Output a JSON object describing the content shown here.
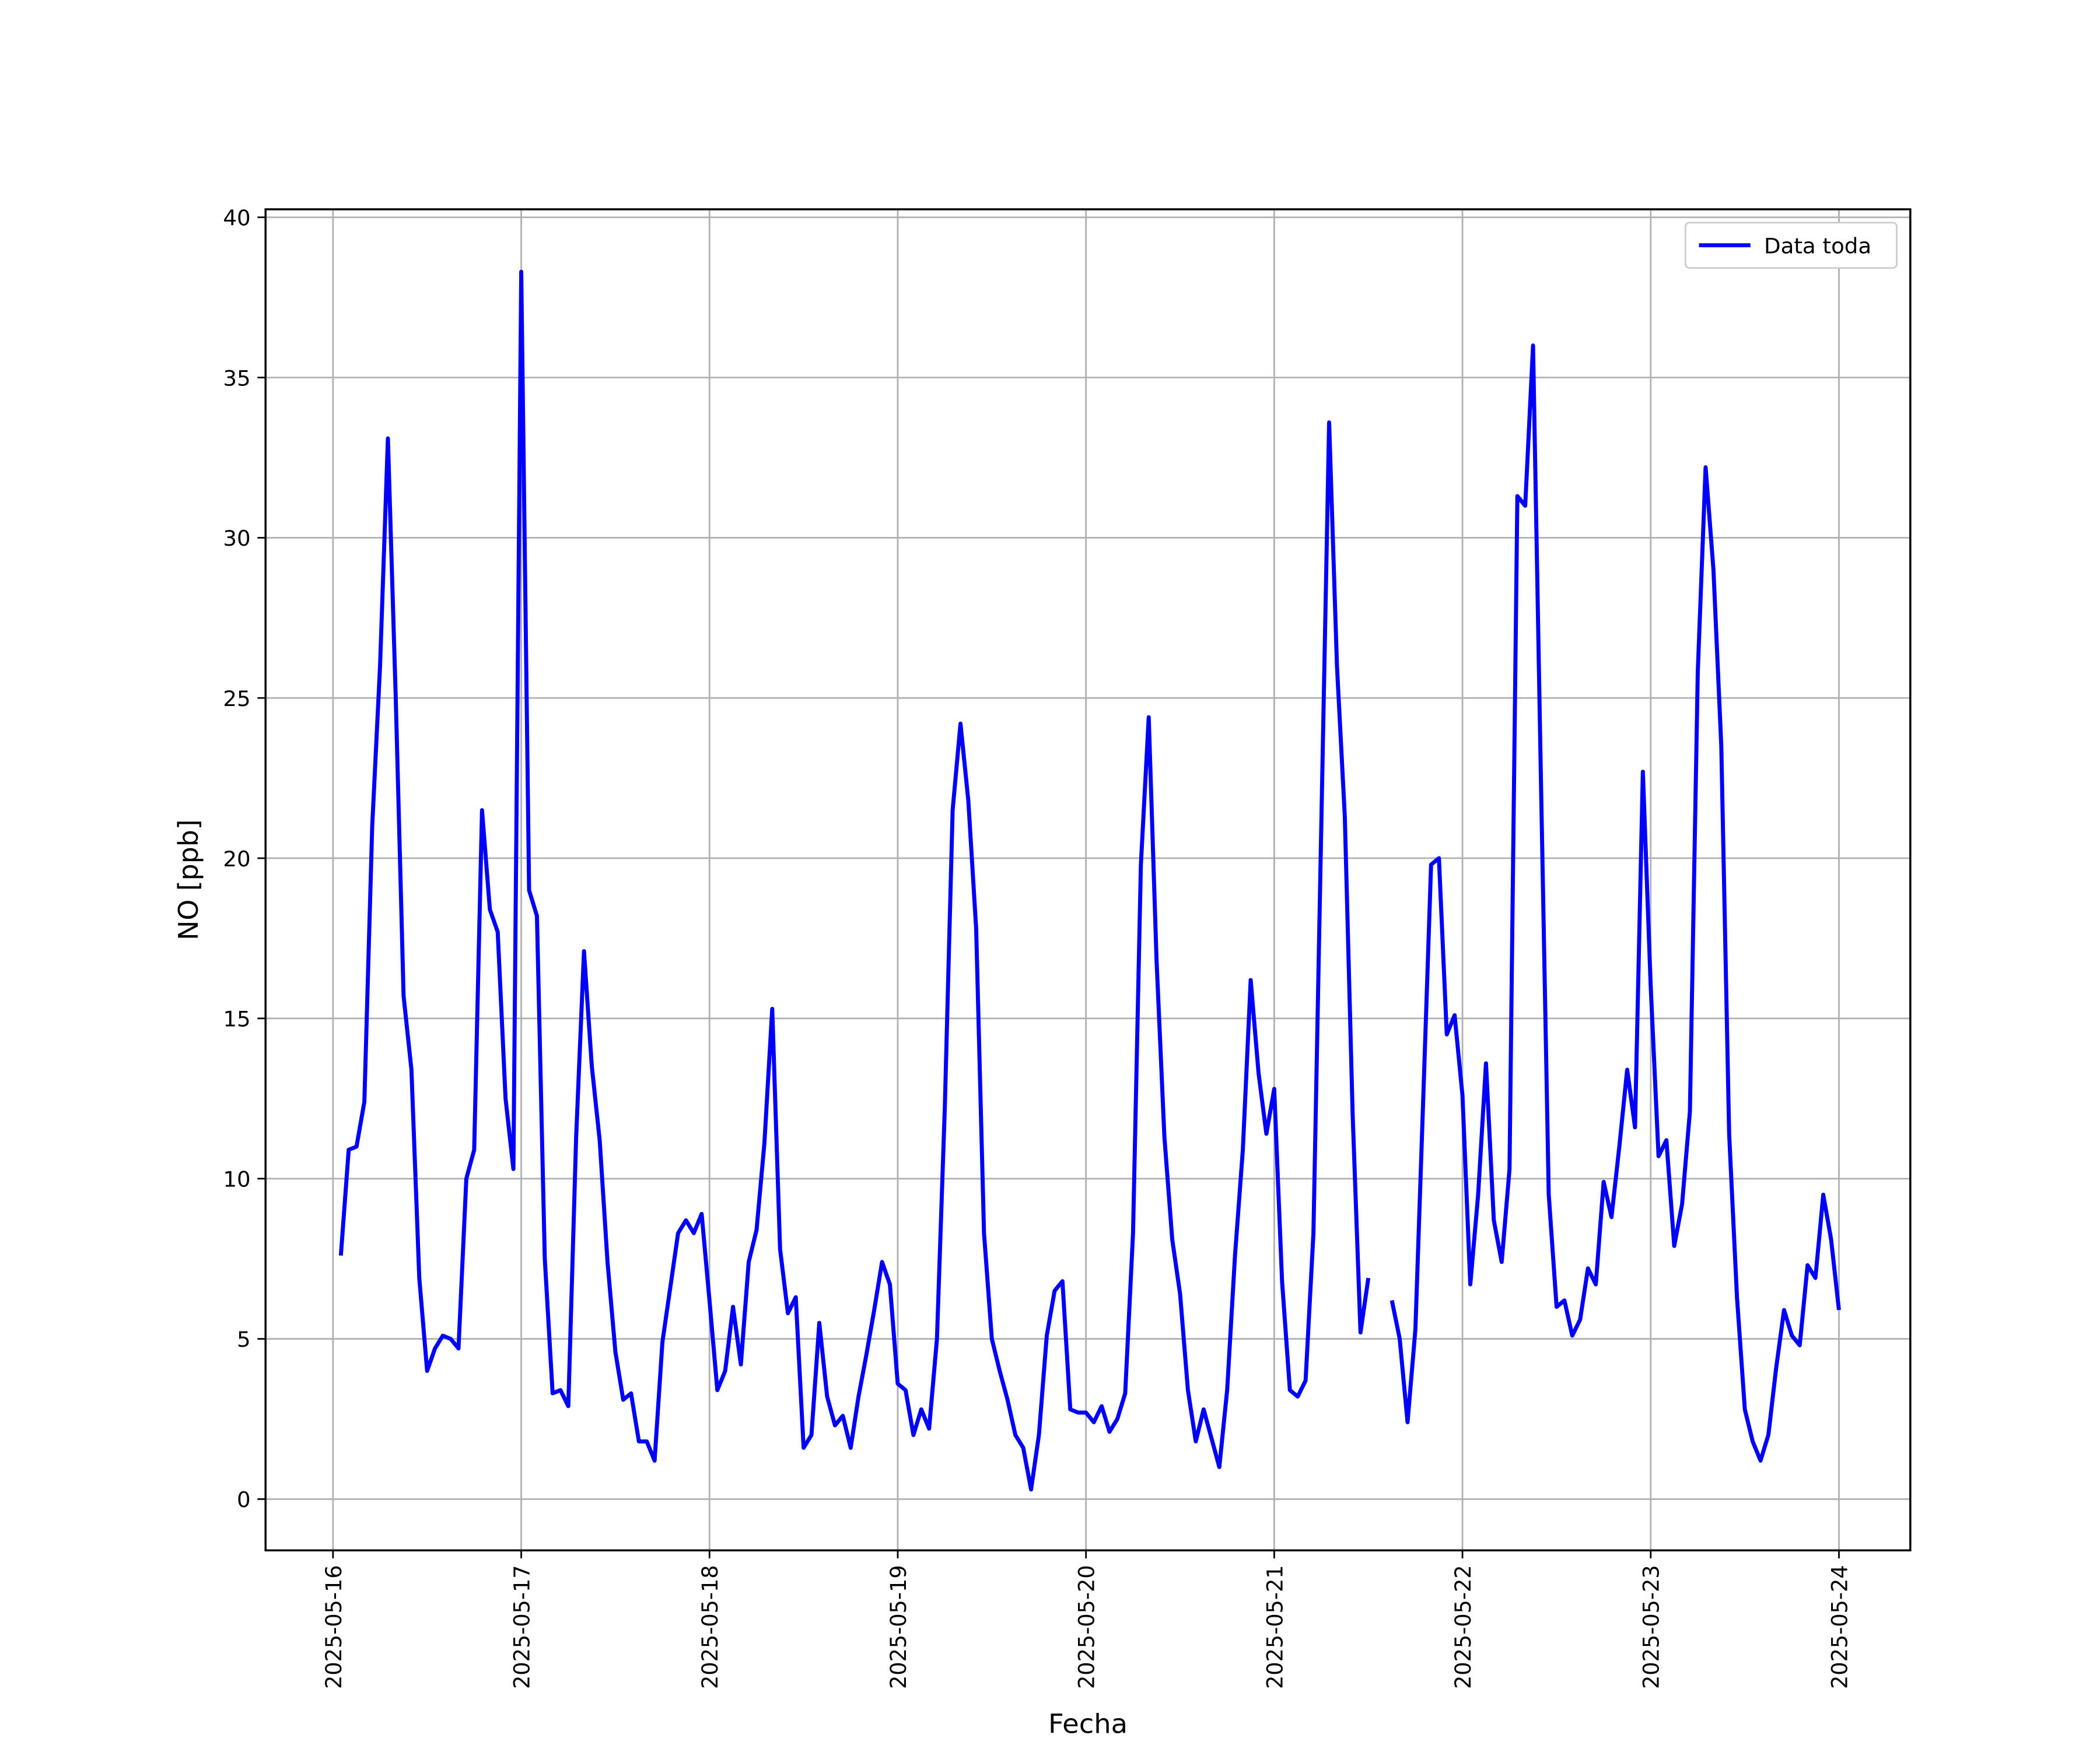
{
  "chart_data": {
    "type": "line",
    "xlabel": "Fecha",
    "ylabel": "NO [ppb]",
    "x": [
      1,
      2,
      3,
      4,
      5,
      6,
      7,
      8,
      9,
      10,
      11,
      12,
      13,
      14,
      15,
      16,
      17,
      18,
      19,
      20,
      21,
      22,
      23,
      24,
      25,
      26,
      27,
      28,
      29,
      30,
      31,
      32,
      33,
      34,
      35,
      36,
      37,
      38,
      39,
      40,
      41,
      42,
      43,
      44,
      45,
      46,
      47,
      48,
      49,
      50,
      51,
      52,
      53,
      54,
      55,
      56,
      57,
      58,
      59,
      60,
      61,
      62,
      63,
      64,
      65,
      66,
      67,
      68,
      69,
      70,
      71,
      72,
      73,
      74,
      75,
      76,
      77,
      78,
      79,
      80,
      81,
      82,
      83,
      84,
      85,
      86,
      87,
      88,
      89,
      90,
      91,
      92,
      93,
      94,
      95,
      96,
      97,
      98,
      99,
      100,
      101,
      102,
      103,
      104,
      105,
      106,
      107,
      108,
      109,
      110,
      111,
      112,
      113,
      114,
      115,
      116,
      117,
      118,
      119,
      120,
      121,
      122,
      123,
      124,
      125,
      126,
      127,
      128,
      129,
      130,
      131,
      132,
      133,
      134,
      135,
      136,
      137,
      138,
      139,
      140,
      141,
      142,
      143,
      144,
      145,
      146,
      147,
      148,
      149,
      150,
      151,
      152,
      153,
      154,
      155,
      156,
      157,
      158,
      159,
      160,
      161,
      162,
      163,
      164,
      165,
      166,
      167,
      168,
      169,
      170,
      171,
      172,
      173,
      174,
      175,
      176,
      177,
      178,
      179,
      180,
      181,
      182,
      183,
      184,
      185,
      186,
      187,
      188,
      189,
      190,
      191,
      192
    ],
    "series": [
      {
        "name": "Data toda",
        "color": "#0000ff",
        "values": [
          7.6,
          10.9,
          11.0,
          12.4,
          21,
          26,
          33.1,
          25,
          15.7,
          13.4,
          6.9,
          4.0,
          4.7,
          5.1,
          5.0,
          4.7,
          10.0,
          10.9,
          21.5,
          18.4,
          17.7,
          12.5,
          10.3,
          38.3,
          19.0,
          18.2,
          7.5,
          3.3,
          3.4,
          2.9,
          11.3,
          17.1,
          13.5,
          11.2,
          7.4,
          4.6,
          3.1,
          3.3,
          1.8,
          1.8,
          1.2,
          4.9,
          6.6,
          8.3,
          8.7,
          8.3,
          8.9,
          6.2,
          3.4,
          4.0,
          6.0,
          4.2,
          7.4,
          8.4,
          11.1,
          15.3,
          7.8,
          5.8,
          6.3,
          1.6,
          2.0,
          5.5,
          3.2,
          2.3,
          2.6,
          1.6,
          3.2,
          4.5,
          5.9,
          7.4,
          6.7,
          3.6,
          3.4,
          2.0,
          2.8,
          2.2,
          5.0,
          12.2,
          21.5,
          24.2,
          21.8,
          17.8,
          8.3,
          5.0,
          4.0,
          3.1,
          2.0,
          1.6,
          0.3,
          2.0,
          5.1,
          6.5,
          6.8,
          2.8,
          2.7,
          2.7,
          2.4,
          2.9,
          2.1,
          2.5,
          3.3,
          8.3,
          19.8,
          24.4,
          16.8,
          11.3,
          8.1,
          6.4,
          3.4,
          1.8,
          2.8,
          1.9,
          1.0,
          3.4,
          7.6,
          10.9,
          16.2,
          13.3,
          11.4,
          12.8,
          6.8,
          3.4,
          3.2,
          3.7,
          8.3,
          21,
          33.6,
          26,
          21.3,
          12,
          5.2,
          6.9,
          null,
          null,
          6.2,
          5.0,
          2.4,
          5.3,
          12.5,
          19.8,
          20.0,
          14.5,
          15.1,
          12.6,
          6.7,
          9.5,
          13.6,
          8.7,
          7.4,
          10.3,
          31.3,
          31.0,
          36.0,
          22.5,
          9.5,
          6.0,
          6.2,
          5.1,
          5.6,
          7.2,
          6.7,
          9.9,
          8.8,
          11.0,
          13.4,
          11.6,
          22.7,
          16.0,
          10.7,
          11.2,
          7.9,
          9.2,
          12.1,
          25.8,
          32.2,
          29.0,
          23.5,
          11.4,
          6.3,
          2.8,
          1.8,
          1.2,
          2.0,
          4.1,
          5.9,
          5.1,
          4.8,
          7.3,
          6.9,
          9.5,
          8.1,
          5.9
        ]
      }
    ],
    "xlim": [
      -8.6,
      201.1
    ],
    "xticks": [
      {
        "value": 0,
        "label": "2025-05-16"
      },
      {
        "value": 24,
        "label": "2025-05-17"
      },
      {
        "value": 48,
        "label": "2025-05-18"
      },
      {
        "value": 72,
        "label": "2025-05-19"
      },
      {
        "value": 96,
        "label": "2025-05-20"
      },
      {
        "value": 120,
        "label": "2025-05-21"
      },
      {
        "value": 144,
        "label": "2025-05-22"
      },
      {
        "value": 168,
        "label": "2025-05-23"
      },
      {
        "value": 192,
        "label": "2025-05-24"
      }
    ],
    "ylim": [
      -1.6,
      40.25
    ],
    "yticks": [
      0,
      5,
      10,
      15,
      20,
      25,
      30,
      35,
      40
    ],
    "grid": true,
    "legend": "upper right"
  }
}
